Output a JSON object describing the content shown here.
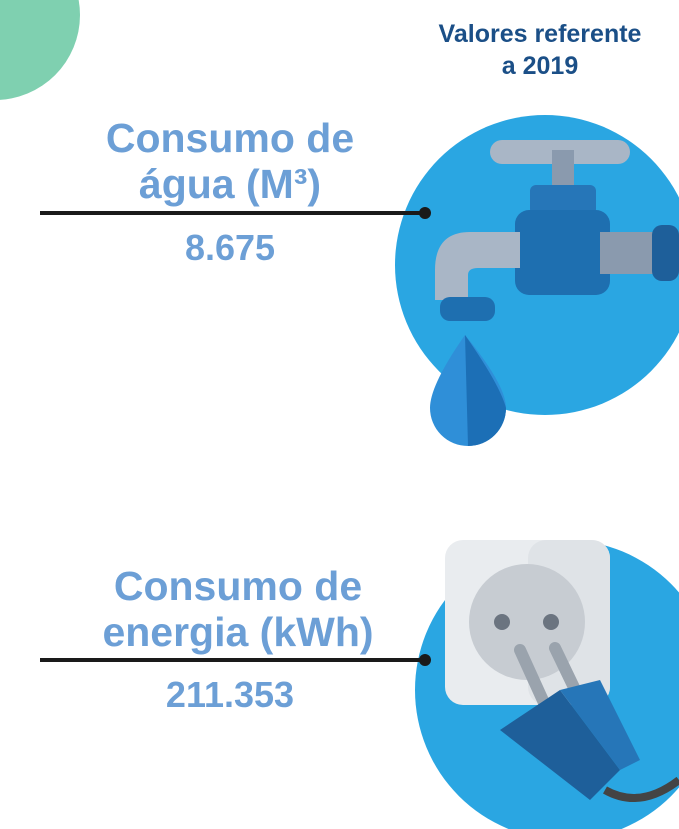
{
  "header": {
    "title_lines": [
      "Valores referente",
      "a 2019"
    ]
  },
  "items": [
    {
      "label_lines": [
        "Consumo de",
        "água (M³)"
      ],
      "value": "8.675"
    },
    {
      "label_lines": [
        "Consumo de",
        "energia (kWh)"
      ],
      "value": "211.353"
    }
  ]
}
